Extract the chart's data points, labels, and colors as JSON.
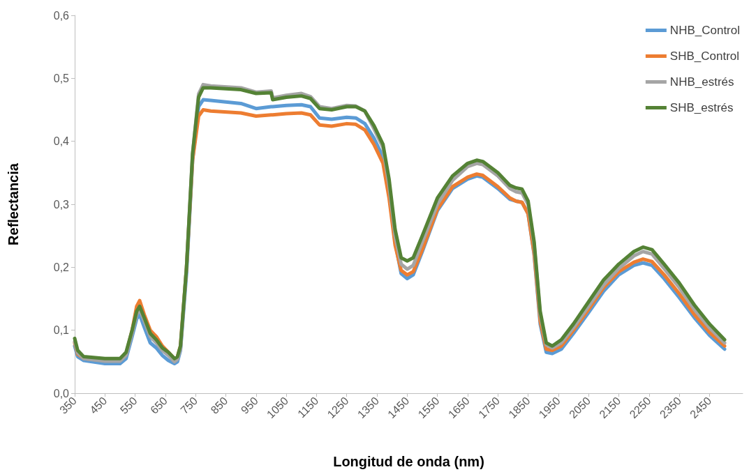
{
  "chart_data": {
    "type": "line",
    "xlabel": "Longitud de onda (nm)",
    "ylabel": "Reflectancia",
    "x": [
      350,
      360,
      380,
      450,
      500,
      520,
      540,
      555,
      565,
      580,
      600,
      620,
      640,
      660,
      680,
      690,
      700,
      720,
      740,
      760,
      775,
      800,
      900,
      950,
      1000,
      1005,
      1050,
      1100,
      1130,
      1160,
      1200,
      1250,
      1280,
      1310,
      1340,
      1370,
      1390,
      1410,
      1430,
      1450,
      1470,
      1500,
      1550,
      1600,
      1650,
      1680,
      1700,
      1750,
      1790,
      1810,
      1830,
      1850,
      1870,
      1890,
      1910,
      1930,
      1960,
      2000,
      2050,
      2100,
      2150,
      2200,
      2230,
      2260,
      2300,
      2350,
      2400,
      2450,
      2500
    ],
    "series": [
      {
        "name": "NHB_Control",
        "color": "#5b9bd5",
        "values": [
          0.075,
          0.058,
          0.052,
          0.047,
          0.047,
          0.055,
          0.09,
          0.118,
          0.125,
          0.105,
          0.08,
          0.072,
          0.06,
          0.052,
          0.047,
          0.05,
          0.068,
          0.19,
          0.37,
          0.455,
          0.466,
          0.465,
          0.46,
          0.452,
          0.455,
          0.455,
          0.457,
          0.458,
          0.455,
          0.437,
          0.435,
          0.438,
          0.437,
          0.428,
          0.405,
          0.375,
          0.32,
          0.24,
          0.19,
          0.182,
          0.188,
          0.225,
          0.29,
          0.325,
          0.34,
          0.345,
          0.343,
          0.325,
          0.308,
          0.305,
          0.303,
          0.285,
          0.22,
          0.11,
          0.065,
          0.063,
          0.07,
          0.095,
          0.128,
          0.162,
          0.188,
          0.203,
          0.207,
          0.203,
          0.182,
          0.152,
          0.12,
          0.092,
          0.07
        ]
      },
      {
        "name": "SHB_Control",
        "color": "#ed7d31",
        "values": [
          0.08,
          0.062,
          0.055,
          0.052,
          0.052,
          0.062,
          0.1,
          0.138,
          0.147,
          0.125,
          0.1,
          0.09,
          0.075,
          0.065,
          0.055,
          0.058,
          0.075,
          0.2,
          0.37,
          0.44,
          0.45,
          0.448,
          0.445,
          0.44,
          0.442,
          0.442,
          0.444,
          0.445,
          0.442,
          0.426,
          0.424,
          0.428,
          0.427,
          0.418,
          0.395,
          0.365,
          0.31,
          0.235,
          0.195,
          0.188,
          0.193,
          0.228,
          0.292,
          0.328,
          0.343,
          0.348,
          0.346,
          0.328,
          0.31,
          0.305,
          0.303,
          0.285,
          0.222,
          0.115,
          0.07,
          0.068,
          0.075,
          0.1,
          0.133,
          0.168,
          0.193,
          0.208,
          0.213,
          0.209,
          0.188,
          0.158,
          0.125,
          0.097,
          0.075
        ]
      },
      {
        "name": "NHB_estrés",
        "color": "#a5a5a5",
        "values": [
          0.082,
          0.064,
          0.055,
          0.051,
          0.051,
          0.06,
          0.095,
          0.125,
          0.133,
          0.115,
          0.09,
          0.08,
          0.068,
          0.06,
          0.05,
          0.054,
          0.07,
          0.2,
          0.38,
          0.475,
          0.49,
          0.488,
          0.485,
          0.478,
          0.48,
          0.469,
          0.473,
          0.476,
          0.471,
          0.455,
          0.452,
          0.457,
          0.456,
          0.448,
          0.42,
          0.39,
          0.33,
          0.25,
          0.205,
          0.197,
          0.203,
          0.24,
          0.3,
          0.338,
          0.36,
          0.365,
          0.363,
          0.345,
          0.325,
          0.32,
          0.318,
          0.3,
          0.235,
          0.125,
          0.077,
          0.072,
          0.08,
          0.104,
          0.138,
          0.172,
          0.198,
          0.218,
          0.225,
          0.221,
          0.198,
          0.168,
          0.133,
          0.104,
          0.08
        ]
      },
      {
        "name": "SHB_estrés",
        "color": "#548235",
        "values": [
          0.087,
          0.068,
          0.058,
          0.055,
          0.055,
          0.065,
          0.1,
          0.13,
          0.138,
          0.12,
          0.095,
          0.085,
          0.072,
          0.065,
          0.055,
          0.058,
          0.075,
          0.2,
          0.38,
          0.47,
          0.485,
          0.485,
          0.482,
          0.476,
          0.477,
          0.466,
          0.47,
          0.472,
          0.468,
          0.452,
          0.45,
          0.455,
          0.455,
          0.448,
          0.425,
          0.395,
          0.34,
          0.26,
          0.215,
          0.21,
          0.215,
          0.25,
          0.31,
          0.345,
          0.365,
          0.37,
          0.368,
          0.35,
          0.33,
          0.326,
          0.324,
          0.305,
          0.24,
          0.13,
          0.08,
          0.075,
          0.085,
          0.11,
          0.145,
          0.18,
          0.205,
          0.225,
          0.232,
          0.228,
          0.205,
          0.175,
          0.14,
          0.11,
          0.085
        ]
      }
    ],
    "xlim": [
      350,
      2560
    ],
    "xticks": [
      350,
      450,
      550,
      650,
      750,
      850,
      950,
      1050,
      1150,
      1250,
      1350,
      1450,
      1550,
      1650,
      1750,
      1850,
      1950,
      2050,
      2150,
      2250,
      2350,
      2450
    ],
    "ylim": [
      0,
      0.6
    ],
    "yticks": [
      {
        "value": 0,
        "label": "0,0"
      },
      {
        "value": 0.1,
        "label": "0,1"
      },
      {
        "value": 0.2,
        "label": "0,2"
      },
      {
        "value": 0.3,
        "label": "0,3"
      },
      {
        "value": 0.4,
        "label": "0,4"
      },
      {
        "value": 0.5,
        "label": "0,5"
      },
      {
        "value": 0.6,
        "label": "0,6"
      }
    ],
    "grid": false,
    "legend": "top right",
    "marker": "none",
    "line_style": "solid"
  }
}
